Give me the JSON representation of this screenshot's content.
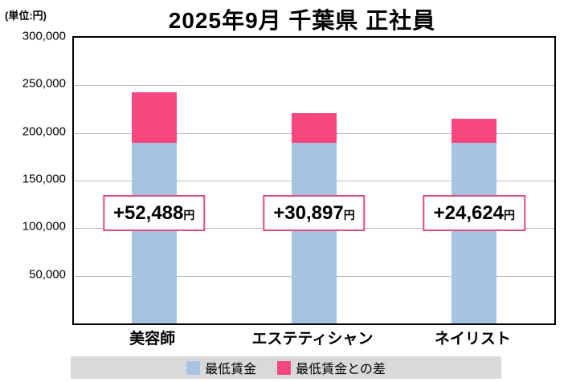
{
  "unit_label": "(単位:円)",
  "title": "2025年9月 千葉県 正社員",
  "chart_data": {
    "type": "bar",
    "stacked": true,
    "categories": [
      "美容師",
      "エステティシャン",
      "ネイリスト"
    ],
    "series": [
      {
        "name": "最低賃金",
        "color": "#a6c4e2",
        "values": [
          190000,
          190000,
          190000
        ]
      },
      {
        "name": "最低賃金との差",
        "color": "#f6477e",
        "values": [
          52488,
          30897,
          24624
        ]
      }
    ],
    "totals": [
      242488,
      220897,
      214624
    ],
    "annotations": [
      {
        "value": "+52,488",
        "suffix": "円"
      },
      {
        "value": "+30,897",
        "suffix": "円"
      },
      {
        "value": "+24,624",
        "suffix": "円"
      }
    ],
    "ylim": [
      0,
      300000
    ],
    "ytick_interval": 50000,
    "yticks": [
      {
        "label": "300,000",
        "value": 300000
      },
      {
        "label": "250,000",
        "value": 250000
      },
      {
        "label": "200,000",
        "value": 200000
      },
      {
        "label": "150,000",
        "value": 150000
      },
      {
        "label": "100,000",
        "value": 100000
      },
      {
        "label": "50,000",
        "value": 50000
      }
    ],
    "grid": true,
    "legend_position": "bottom"
  },
  "legend": {
    "items": [
      {
        "label": "最低賃金",
        "color": "#a6c4e2"
      },
      {
        "label": "最低賃金との差",
        "color": "#f6477e"
      }
    ]
  },
  "colors": {
    "annotation_border": "#e24b77",
    "legend_background": "#d9d9d9",
    "plot_border": "#000000",
    "gridline": "#bbbbbb"
  }
}
